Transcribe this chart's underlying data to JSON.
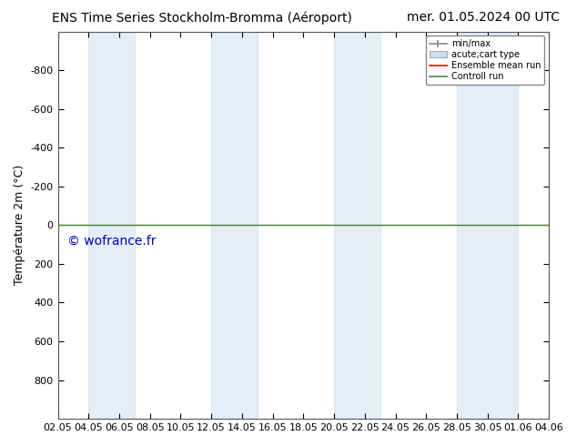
{
  "title": "ENS Time Series Stockholm-Bromma (Aéroport)",
  "title_right": "mer. 01.05.2024 00 UTC",
  "ylabel": "Température 2m (°C)",
  "watermark": "© wofrance.fr",
  "xlabel_ticks": [
    "02.05",
    "04.05",
    "06.05",
    "08.05",
    "10.05",
    "12.05",
    "14.05",
    "16.05",
    "18.05",
    "20.05",
    "22.05",
    "24.05",
    "26.05",
    "28.05",
    "30.05",
    "01.06",
    "04.06"
  ],
  "ylim_top": -1000,
  "ylim_bottom": 1000,
  "yticks": [
    -800,
    -600,
    -400,
    -200,
    0,
    200,
    400,
    600,
    800
  ],
  "xlim": [
    0,
    16
  ],
  "bg_color": "#ffffff",
  "plot_bg_color": "#ffffff",
  "band_color": "#cce0f0",
  "band_alpha": 0.55,
  "band_positions": [
    1.0,
    1.5,
    5.0,
    5.5,
    9.0,
    9.5,
    13.0,
    13.5
  ],
  "band_pairs": [
    [
      1.0,
      2.0
    ],
    [
      5.0,
      6.0
    ],
    [
      9.0,
      10.0
    ],
    [
      13.0,
      14.5
    ]
  ],
  "ensemble_mean_color": "#ff0000",
  "control_run_color": "#448844",
  "ensemble_mean_y": 0,
  "control_run_y": 0,
  "legend_labels": [
    "min/max",
    "acute;cart type",
    "Ensemble mean run",
    "Controll run"
  ],
  "title_fontsize": 10,
  "tick_label_fontsize": 8,
  "ylabel_fontsize": 9,
  "watermark_color": "#0000cc",
  "watermark_fontsize": 10
}
